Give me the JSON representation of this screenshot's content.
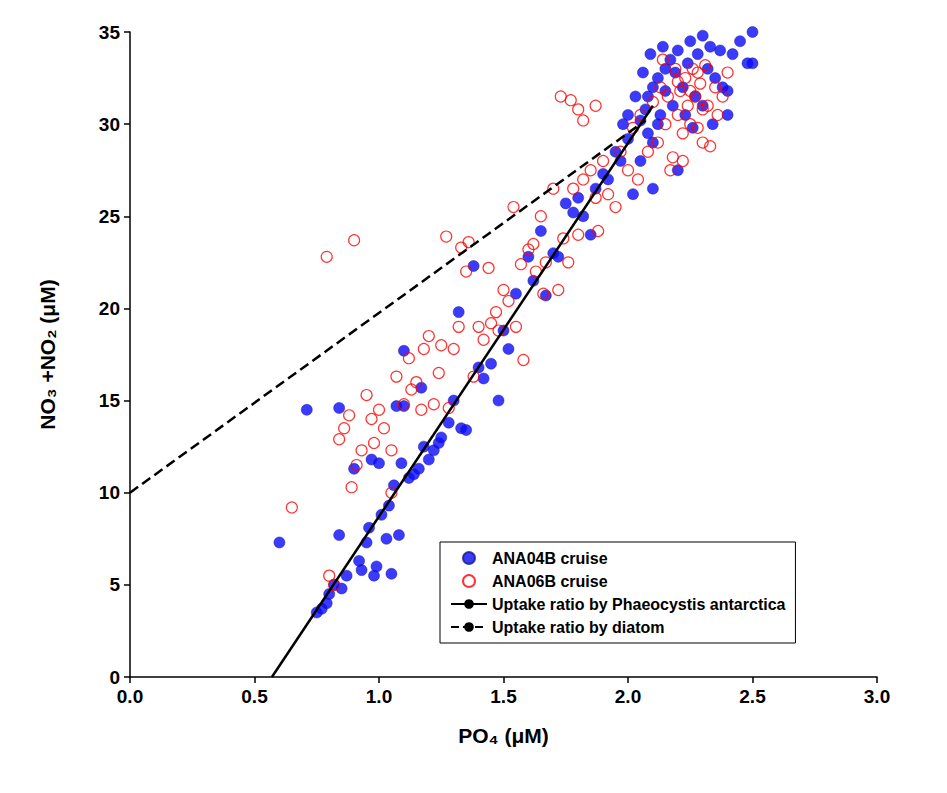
{
  "chart_data": {
    "type": "scatter",
    "x_label": "PO₄ (μM)",
    "y_label": "NO₃ +NO₂ (μM)",
    "xlim": [
      0,
      3
    ],
    "xticks": [
      {
        "value": 0,
        "label": "0.0"
      },
      0.5,
      {
        "value": 1,
        "label": "1.0"
      },
      1.5,
      {
        "value": 2,
        "label": "2.0"
      },
      2.5,
      {
        "value": 3,
        "label": "3.0"
      }
    ],
    "ylim": [
      0,
      35
    ],
    "yticks": [
      0,
      5,
      10,
      15,
      20,
      25,
      30,
      35
    ],
    "grid": false,
    "legend": "lower right",
    "series": [
      {
        "name": "ANA04B cruise",
        "type": "scatter",
        "color": "#0a0aff",
        "marker": "circle",
        "values": [
          [
            0.6,
            7.3
          ],
          [
            0.71,
            14.5
          ],
          [
            0.75,
            3.5
          ],
          [
            0.77,
            3.7
          ],
          [
            0.79,
            4.0
          ],
          [
            0.8,
            4.5
          ],
          [
            0.82,
            5.0
          ],
          [
            0.84,
            7.7
          ],
          [
            0.84,
            14.6
          ],
          [
            0.85,
            4.8
          ],
          [
            0.87,
            5.5
          ],
          [
            0.9,
            11.3
          ],
          [
            0.92,
            6.3
          ],
          [
            0.93,
            5.8
          ],
          [
            0.95,
            7.3
          ],
          [
            0.96,
            8.1
          ],
          [
            0.97,
            11.8
          ],
          [
            0.98,
            5.5
          ],
          [
            0.99,
            6.0
          ],
          [
            1.0,
            11.6
          ],
          [
            1.01,
            8.8
          ],
          [
            1.03,
            7.5
          ],
          [
            1.04,
            9.3
          ],
          [
            1.05,
            5.6
          ],
          [
            1.06,
            10.4
          ],
          [
            1.07,
            14.7
          ],
          [
            1.08,
            7.7
          ],
          [
            1.09,
            11.6
          ],
          [
            1.1,
            14.7
          ],
          [
            1.1,
            17.7
          ],
          [
            1.12,
            10.8
          ],
          [
            1.14,
            11.0
          ],
          [
            1.16,
            11.3
          ],
          [
            1.17,
            15.7
          ],
          [
            1.18,
            12.5
          ],
          [
            1.2,
            11.8
          ],
          [
            1.22,
            12.3
          ],
          [
            1.24,
            12.7
          ],
          [
            1.25,
            13.0
          ],
          [
            1.28,
            13.8
          ],
          [
            1.3,
            15.0
          ],
          [
            1.32,
            19.8
          ],
          [
            1.33,
            13.5
          ],
          [
            1.35,
            13.4
          ],
          [
            1.38,
            22.3
          ],
          [
            1.4,
            16.8
          ],
          [
            1.42,
            16.2
          ],
          [
            1.45,
            17.0
          ],
          [
            1.48,
            15.0
          ],
          [
            1.5,
            18.8
          ],
          [
            1.52,
            17.8
          ],
          [
            1.55,
            20.8
          ],
          [
            1.6,
            22.8
          ],
          [
            1.62,
            21.5
          ],
          [
            1.65,
            24.2
          ],
          [
            1.67,
            20.7
          ],
          [
            1.7,
            23.0
          ],
          [
            1.72,
            22.8
          ],
          [
            1.75,
            25.7
          ],
          [
            1.78,
            25.2
          ],
          [
            1.8,
            26.0
          ],
          [
            1.82,
            25.0
          ],
          [
            1.85,
            24.0
          ],
          [
            1.87,
            26.5
          ],
          [
            1.9,
            27.3
          ],
          [
            1.92,
            27.0
          ],
          [
            1.95,
            28.5
          ],
          [
            1.97,
            28.0
          ],
          [
            2.0,
            29.2
          ],
          [
            2.02,
            26.2
          ],
          [
            2.05,
            30.2
          ],
          [
            2.07,
            30.8
          ],
          [
            2.08,
            31.5
          ],
          [
            2.1,
            32.0
          ],
          [
            2.1,
            29.0
          ],
          [
            2.12,
            32.5
          ],
          [
            2.13,
            30.5
          ],
          [
            2.15,
            33.0
          ],
          [
            2.17,
            33.5
          ],
          [
            2.18,
            31.0
          ],
          [
            2.2,
            34.0
          ],
          [
            2.2,
            27.5
          ],
          [
            2.22,
            32.0
          ],
          [
            2.24,
            33.3
          ],
          [
            2.25,
            34.5
          ],
          [
            2.27,
            31.5
          ],
          [
            2.28,
            33.8
          ],
          [
            2.3,
            34.8
          ],
          [
            2.32,
            33.0
          ],
          [
            2.33,
            34.2
          ],
          [
            2.35,
            32.5
          ],
          [
            2.37,
            34.0
          ],
          [
            2.4,
            31.8
          ],
          [
            2.42,
            33.8
          ],
          [
            2.45,
            34.5
          ],
          [
            2.48,
            33.3
          ],
          [
            2.5,
            35.0
          ],
          [
            2.5,
            33.3
          ],
          [
            2.05,
            28.0
          ],
          [
            2.08,
            29.5
          ],
          [
            2.12,
            30.0
          ],
          [
            2.15,
            31.8
          ],
          [
            2.0,
            30.5
          ],
          [
            2.03,
            31.5
          ],
          [
            2.06,
            32.8
          ],
          [
            2.09,
            33.8
          ],
          [
            2.14,
            34.2
          ],
          [
            2.19,
            32.8
          ],
          [
            2.23,
            30.5
          ],
          [
            2.26,
            29.8
          ],
          [
            2.3,
            31.0
          ],
          [
            2.34,
            30.0
          ],
          [
            2.38,
            32.0
          ],
          [
            2.4,
            30.5
          ],
          [
            1.98,
            30.0
          ],
          [
            2.1,
            26.5
          ]
        ]
      },
      {
        "name": "ANA06B cruise",
        "type": "scatter",
        "color": "#ff0000",
        "marker": "open_circle",
        "values": [
          [
            0.65,
            9.2
          ],
          [
            0.79,
            22.8
          ],
          [
            0.8,
            5.5
          ],
          [
            0.82,
            5.0
          ],
          [
            0.84,
            12.9
          ],
          [
            0.86,
            13.5
          ],
          [
            0.88,
            14.2
          ],
          [
            0.89,
            10.3
          ],
          [
            0.9,
            23.7
          ],
          [
            0.91,
            11.5
          ],
          [
            0.93,
            12.3
          ],
          [
            0.95,
            15.3
          ],
          [
            0.97,
            14.0
          ],
          [
            0.98,
            12.7
          ],
          [
            1.0,
            14.5
          ],
          [
            1.02,
            13.5
          ],
          [
            1.05,
            10.0
          ],
          [
            1.05,
            12.3
          ],
          [
            1.07,
            16.3
          ],
          [
            1.1,
            14.8
          ],
          [
            1.12,
            17.3
          ],
          [
            1.13,
            15.6
          ],
          [
            1.15,
            16.0
          ],
          [
            1.17,
            14.5
          ],
          [
            1.18,
            17.8
          ],
          [
            1.2,
            18.5
          ],
          [
            1.22,
            14.8
          ],
          [
            1.24,
            16.5
          ],
          [
            1.25,
            18.0
          ],
          [
            1.27,
            23.9
          ],
          [
            1.28,
            14.6
          ],
          [
            1.3,
            17.8
          ],
          [
            1.32,
            19.0
          ],
          [
            1.33,
            23.3
          ],
          [
            1.35,
            22.0
          ],
          [
            1.36,
            23.6
          ],
          [
            1.38,
            16.3
          ],
          [
            1.4,
            19.0
          ],
          [
            1.42,
            18.3
          ],
          [
            1.44,
            22.2
          ],
          [
            1.45,
            19.2
          ],
          [
            1.47,
            19.8
          ],
          [
            1.5,
            21.0
          ],
          [
            1.52,
            20.4
          ],
          [
            1.54,
            25.5
          ],
          [
            1.55,
            19.0
          ],
          [
            1.57,
            22.4
          ],
          [
            1.6,
            23.2
          ],
          [
            1.62,
            23.5
          ],
          [
            1.63,
            22.0
          ],
          [
            1.65,
            25.0
          ],
          [
            1.67,
            22.5
          ],
          [
            1.7,
            26.5
          ],
          [
            1.72,
            21.0
          ],
          [
            1.74,
            23.8
          ],
          [
            1.76,
            22.5
          ],
          [
            1.78,
            26.5
          ],
          [
            1.8,
            24.0
          ],
          [
            1.82,
            27.0
          ],
          [
            1.85,
            27.5
          ],
          [
            1.87,
            26.0
          ],
          [
            1.88,
            24.2
          ],
          [
            1.9,
            28.0
          ],
          [
            1.92,
            26.2
          ],
          [
            1.95,
            25.5
          ],
          [
            1.97,
            28.5
          ],
          [
            2.0,
            27.5
          ],
          [
            2.02,
            29.8
          ],
          [
            2.04,
            27.0
          ],
          [
            1.73,
            31.5
          ],
          [
            1.77,
            31.3
          ],
          [
            1.8,
            30.8
          ],
          [
            1.82,
            30.2
          ],
          [
            1.87,
            31.0
          ],
          [
            2.05,
            30.5
          ],
          [
            2.08,
            28.5
          ],
          [
            2.1,
            31.2
          ],
          [
            2.12,
            29.0
          ],
          [
            2.13,
            32.0
          ],
          [
            2.15,
            30.0
          ],
          [
            2.16,
            31.5
          ],
          [
            2.18,
            28.2
          ],
          [
            2.19,
            33.0
          ],
          [
            2.2,
            30.5
          ],
          [
            2.21,
            31.8
          ],
          [
            2.22,
            29.5
          ],
          [
            2.23,
            32.5
          ],
          [
            2.24,
            31.0
          ],
          [
            2.25,
            30.0
          ],
          [
            2.26,
            33.0
          ],
          [
            2.27,
            31.5
          ],
          [
            2.28,
            29.8
          ],
          [
            2.29,
            32.2
          ],
          [
            2.3,
            30.8
          ],
          [
            2.31,
            33.2
          ],
          [
            2.32,
            31.0
          ],
          [
            2.33,
            28.8
          ],
          [
            2.35,
            32.0
          ],
          [
            2.36,
            30.5
          ],
          [
            2.38,
            31.5
          ],
          [
            2.4,
            32.8
          ],
          [
            2.14,
            33.5
          ],
          [
            2.17,
            27.5
          ],
          [
            2.2,
            32.3
          ],
          [
            2.22,
            28.0
          ],
          [
            2.25,
            31.8
          ],
          [
            2.28,
            32.8
          ],
          [
            2.3,
            29.0
          ],
          [
            1.66,
            20.8
          ],
          [
            1.48,
            18.8
          ],
          [
            1.58,
            17.2
          ]
        ]
      },
      {
        "name": "Uptake ratio by Phaeocystis antarctica",
        "type": "line",
        "color": "#000000",
        "line_style": "solid",
        "values": [
          [
            0.57,
            0
          ],
          [
            2.1,
            31
          ]
        ]
      },
      {
        "name": "Uptake ratio by diatom",
        "type": "line",
        "color": "#000000",
        "line_style": "dashed",
        "values": [
          [
            0,
            10
          ],
          [
            2.07,
            30.2
          ]
        ]
      }
    ]
  }
}
